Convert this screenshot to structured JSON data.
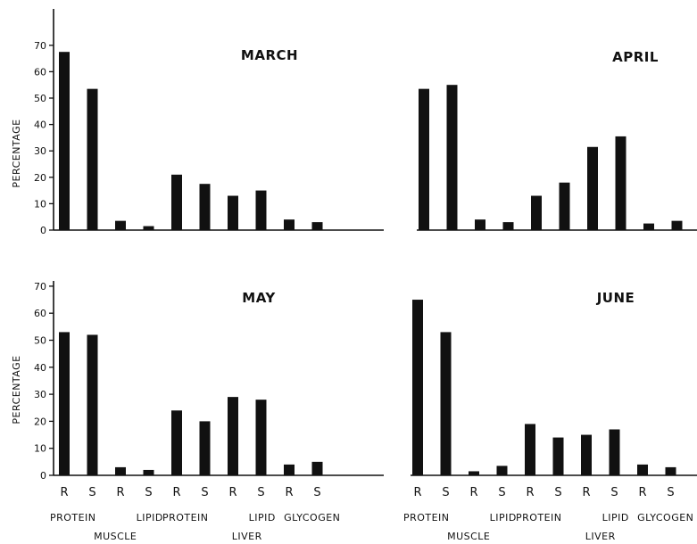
{
  "chart_data": [
    {
      "type": "bar",
      "title": "MARCH",
      "ylabel": "PERCENTAGE",
      "ylim": [
        0,
        75
      ],
      "yticks": [
        0,
        10,
        20,
        30,
        40,
        50,
        60,
        70
      ],
      "categories": [
        "R",
        "S",
        "R",
        "S",
        "R",
        "S",
        "R",
        "S",
        "R",
        "S"
      ],
      "values": [
        67.5,
        53.5,
        3.5,
        1.5,
        21,
        17.5,
        13,
        15,
        4,
        3
      ]
    },
    {
      "type": "bar",
      "title": "APRIL",
      "ylabel": "",
      "ylim": [
        0,
        75
      ],
      "categories": [
        "R",
        "S",
        "R",
        "S",
        "R",
        "S",
        "R",
        "S",
        "R",
        "S"
      ],
      "values": [
        53.5,
        55,
        4,
        3,
        13,
        18,
        31.5,
        35.5,
        2.5,
        3.5
      ]
    },
    {
      "type": "bar",
      "title": "MAY",
      "ylabel": "PERCENTAGE",
      "ylim": [
        0,
        70
      ],
      "yticks": [
        0,
        10,
        20,
        30,
        40,
        50,
        60,
        70
      ],
      "categories": [
        "R",
        "S",
        "R",
        "S",
        "R",
        "S",
        "R",
        "S",
        "R",
        "S"
      ],
      "values": [
        53,
        52,
        3,
        2,
        24,
        20,
        29,
        28,
        4,
        5
      ],
      "group_labels": [
        "PROTEIN",
        "LIPID",
        "PROTEIN",
        "LIPID",
        "GLYCOGEN"
      ],
      "tissue_labels": [
        "MUSCLE",
        "LIVER"
      ]
    },
    {
      "type": "bar",
      "title": "JUNE",
      "ylabel": "",
      "ylim": [
        0,
        70
      ],
      "categories": [
        "R",
        "S",
        "R",
        "S",
        "R",
        "S",
        "R",
        "S",
        "R",
        "S"
      ],
      "values": [
        65,
        53,
        1.5,
        3.5,
        19,
        14,
        15,
        17,
        4,
        3
      ],
      "group_labels": [
        "PROTEIN",
        "LIPID",
        "PROTEIN",
        "LIPID",
        "GLYCOGEN"
      ],
      "tissue_labels": [
        "MUSCLE",
        "LIVER"
      ]
    }
  ]
}
